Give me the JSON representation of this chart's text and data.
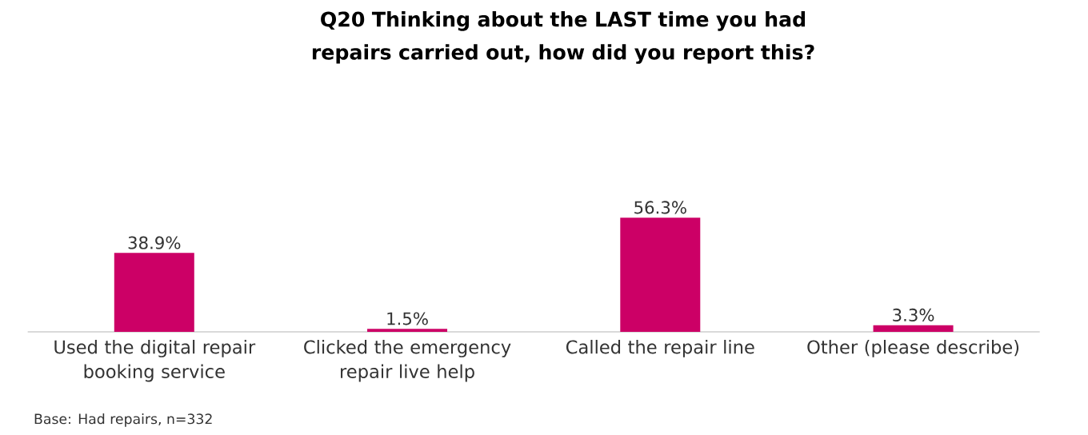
{
  "chart_data": {
    "type": "bar",
    "title": "Q20 Thinking about the LAST time you had repairs carried out, how did you report this?",
    "categories": [
      "Used the digital repair booking service",
      "Clicked the emergency repair live help",
      "Called the repair line",
      "Other (please describe)"
    ],
    "values": [
      38.9,
      1.5,
      56.3,
      3.3
    ],
    "value_labels": [
      "38.9%",
      "1.5%",
      "56.3%",
      "3.3%"
    ],
    "color": "#cc0066",
    "annotations": [
      "Base: Had repairs, n=332"
    ]
  }
}
